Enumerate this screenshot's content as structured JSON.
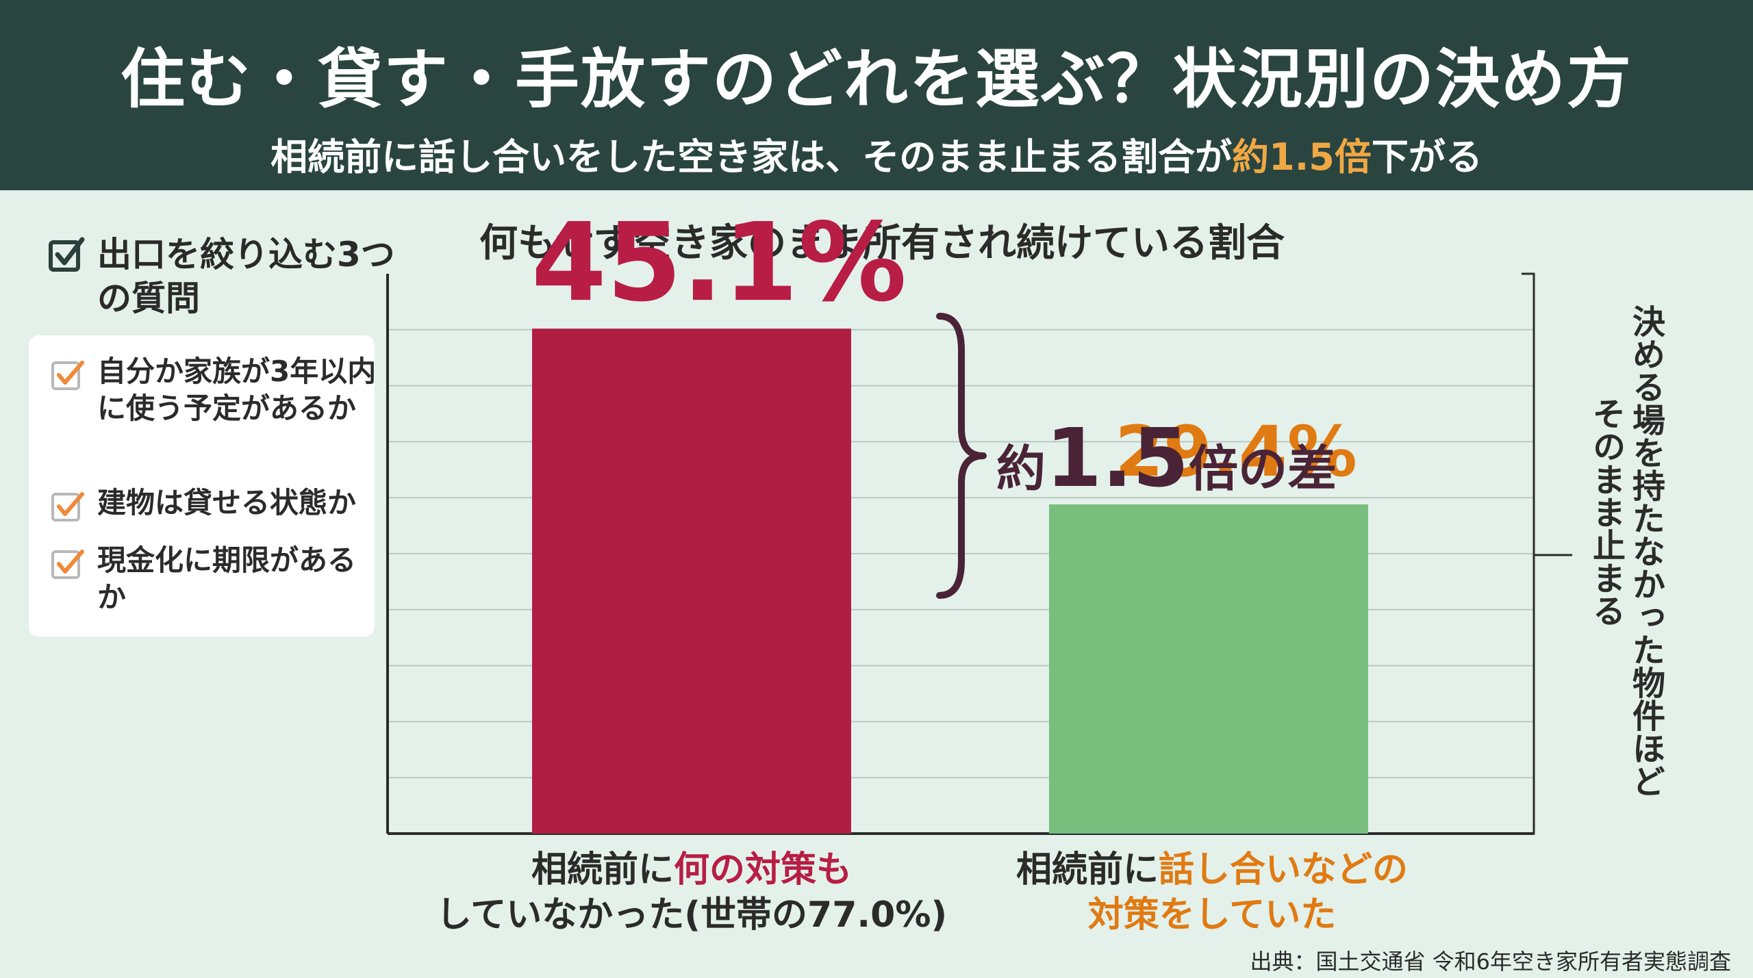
{
  "header": {
    "title": "住む・貸す・手放すのどれを選ぶ？状況別の決め方",
    "subtitle_pre": "相続前に話し合いをした空き家は、そのまま止まる割合が",
    "subtitle_highlight": "約1.5倍",
    "subtitle_post": "下がる"
  },
  "checklist": {
    "title": "出口を絞り込む3つの質問",
    "items": [
      "自分か家族が3年以内に使う予定があるか",
      "建物は貸せる状態か",
      "現金化に期限があるか"
    ]
  },
  "chart_data": {
    "type": "bar",
    "title": "何もせず空き家のまま所有され続けている割合",
    "categories": [
      "相続前に何の対策もしていなかった(世帯の77.0%)",
      "相続前に話し合いなどの対策をしていた"
    ],
    "values": [
      45.1,
      29.4
    ],
    "value_labels": [
      "45.1%",
      "29.4%"
    ],
    "unit": "%",
    "ylim": [
      0,
      50
    ],
    "grid": true,
    "bar_colors": [
      "#b01e44",
      "#78be7d"
    ],
    "label_colors": [
      "#b81d45",
      "#e07a12"
    ],
    "difference_label": {
      "pre": "約",
      "big": "1.5",
      "post": "倍の差"
    },
    "side_note": [
      "決める場を持たなかった物件ほど",
      "そのまま止まる"
    ]
  },
  "xlabels": {
    "bar1_line1_pre": "相続前に",
    "bar1_line1_hl": "何の対策も",
    "bar1_line2": "していなかった(世帯の77.0%)",
    "bar2_line1_pre": "相続前に",
    "bar2_line1_hl": "話し合いなどの",
    "bar2_line2": "対策をしていた"
  },
  "source": "出典：国土交通省 令和6年空き家所有者実態調査",
  "colors": {
    "header_bg": "#2a4540",
    "page_bg": "#e3f1ea",
    "accent_orange": "#f0a845",
    "checkbox_orange": "#f08a3a"
  }
}
